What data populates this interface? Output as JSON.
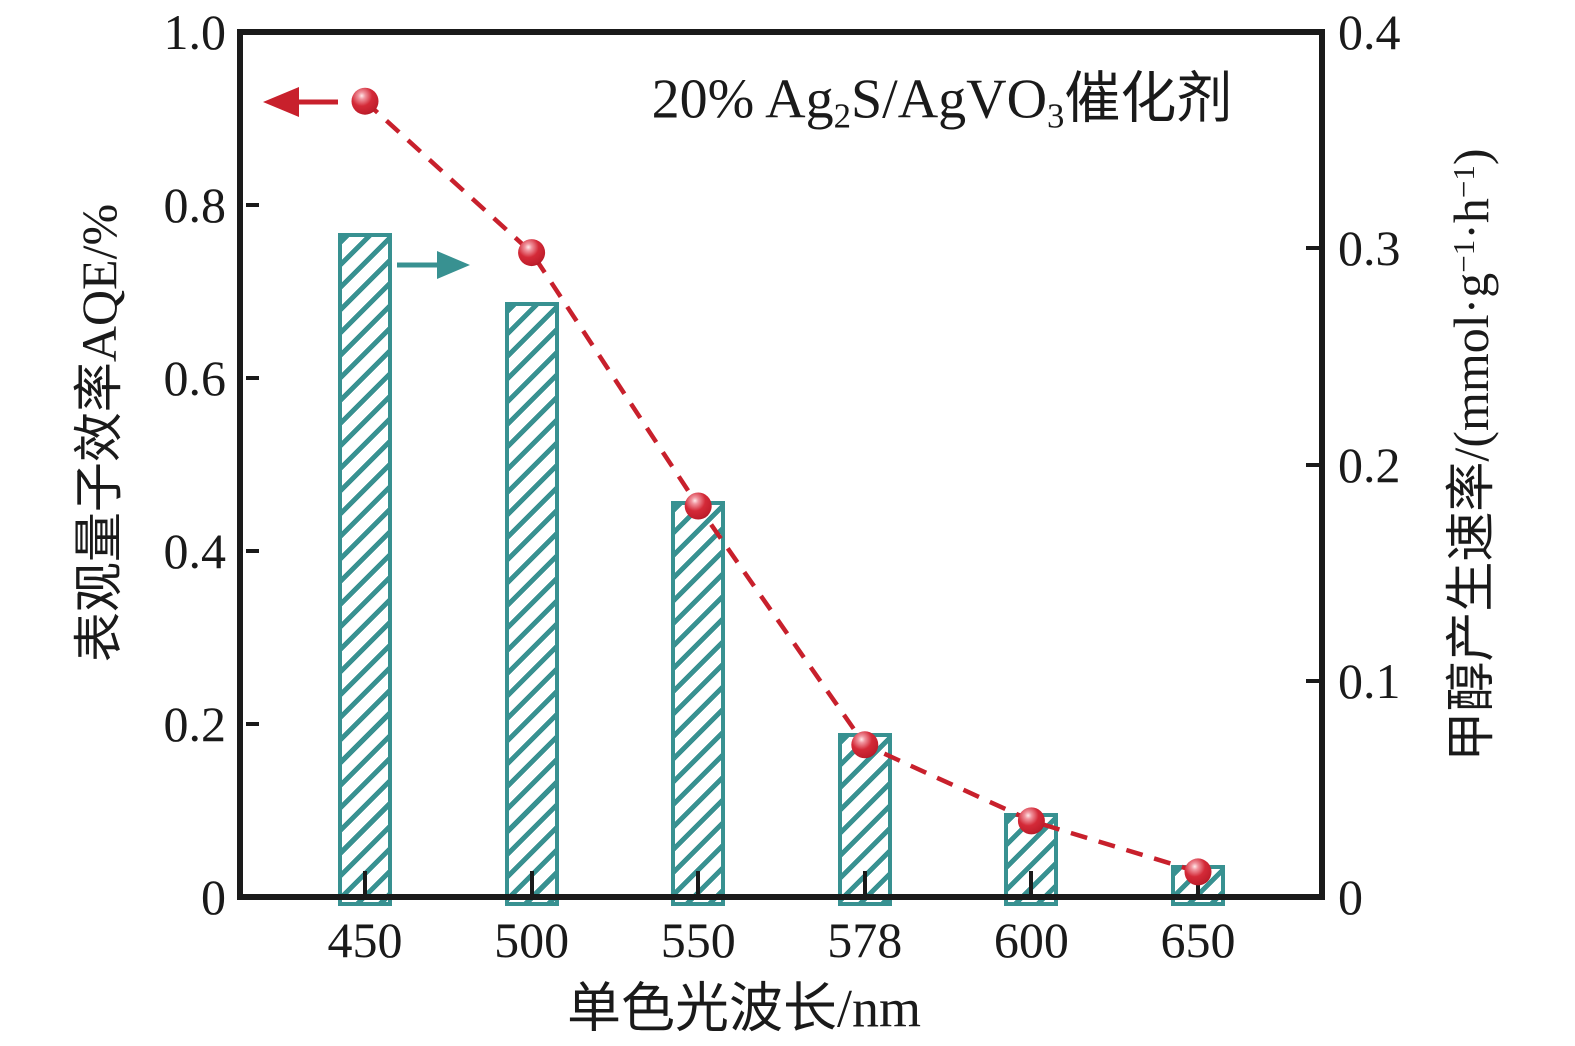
{
  "chart_data": {
    "type": "bar+line",
    "title": "20% Ag2S/AgVO3催化剂",
    "xlabel": "单色光波长/nm",
    "ylabel_left": "表观量子效率AQE/%",
    "ylabel_right": "甲醇产生速率/(mmol·g−1·h−1)",
    "categories": [
      "450",
      "500",
      "550",
      "578",
      "600",
      "650"
    ],
    "series": [
      {
        "name": "甲醇产生速率 (hatched bars, right axis)",
        "type": "bar",
        "axis": "right",
        "color": "#389191",
        "hatch": "/",
        "values": [
          0.307,
          0.275,
          0.183,
          0.076,
          0.039,
          0.015
        ]
      },
      {
        "name": "表观量子效率AQE (dashed line with sphere markers, left axis)",
        "type": "line",
        "axis": "left",
        "color": "#c8202c",
        "line_style": "dashed",
        "marker": "red-sphere",
        "values": [
          0.92,
          0.745,
          0.452,
          0.176,
          0.088,
          0.029
        ]
      }
    ],
    "ylim_left": [
      0,
      1.0
    ],
    "ylim_right": [
      0,
      0.4
    ],
    "left_tick_values": [
      1.0,
      0.8,
      0.6,
      0.4,
      0.2,
      0
    ],
    "right_tick_values": [
      0.4,
      0.3,
      0.2,
      0.1,
      0
    ],
    "grid": false,
    "legend": "none (colored arrows point to the axis of each series)"
  },
  "title_parts": {
    "p1": "20% Ag",
    "sub1": "2",
    "p2": "S/AgVO",
    "sub2": "3",
    "p3": "催化剂"
  },
  "axis_labels": {
    "left": "表观量子效率AQE/%",
    "x": "单色光波长/nm",
    "right_parts": {
      "p1": "甲醇产生速率/(mmol·g",
      "sup1": "−1",
      "p2": "·h",
      "sup2": "−1",
      "p3": ")"
    }
  },
  "tick_labels": {
    "left": [
      "1.0",
      "0.8",
      "0.6",
      "0.4",
      "0.2",
      "0"
    ],
    "right": [
      "0.4",
      "0.3",
      "0.2",
      "0.1",
      "0"
    ],
    "x": [
      "450",
      "500",
      "550",
      "578",
      "600",
      "650"
    ]
  },
  "colors": {
    "bar": "#389191",
    "line": "#c8202c",
    "axis": "#1a1a1a",
    "background": "#ffffff"
  }
}
